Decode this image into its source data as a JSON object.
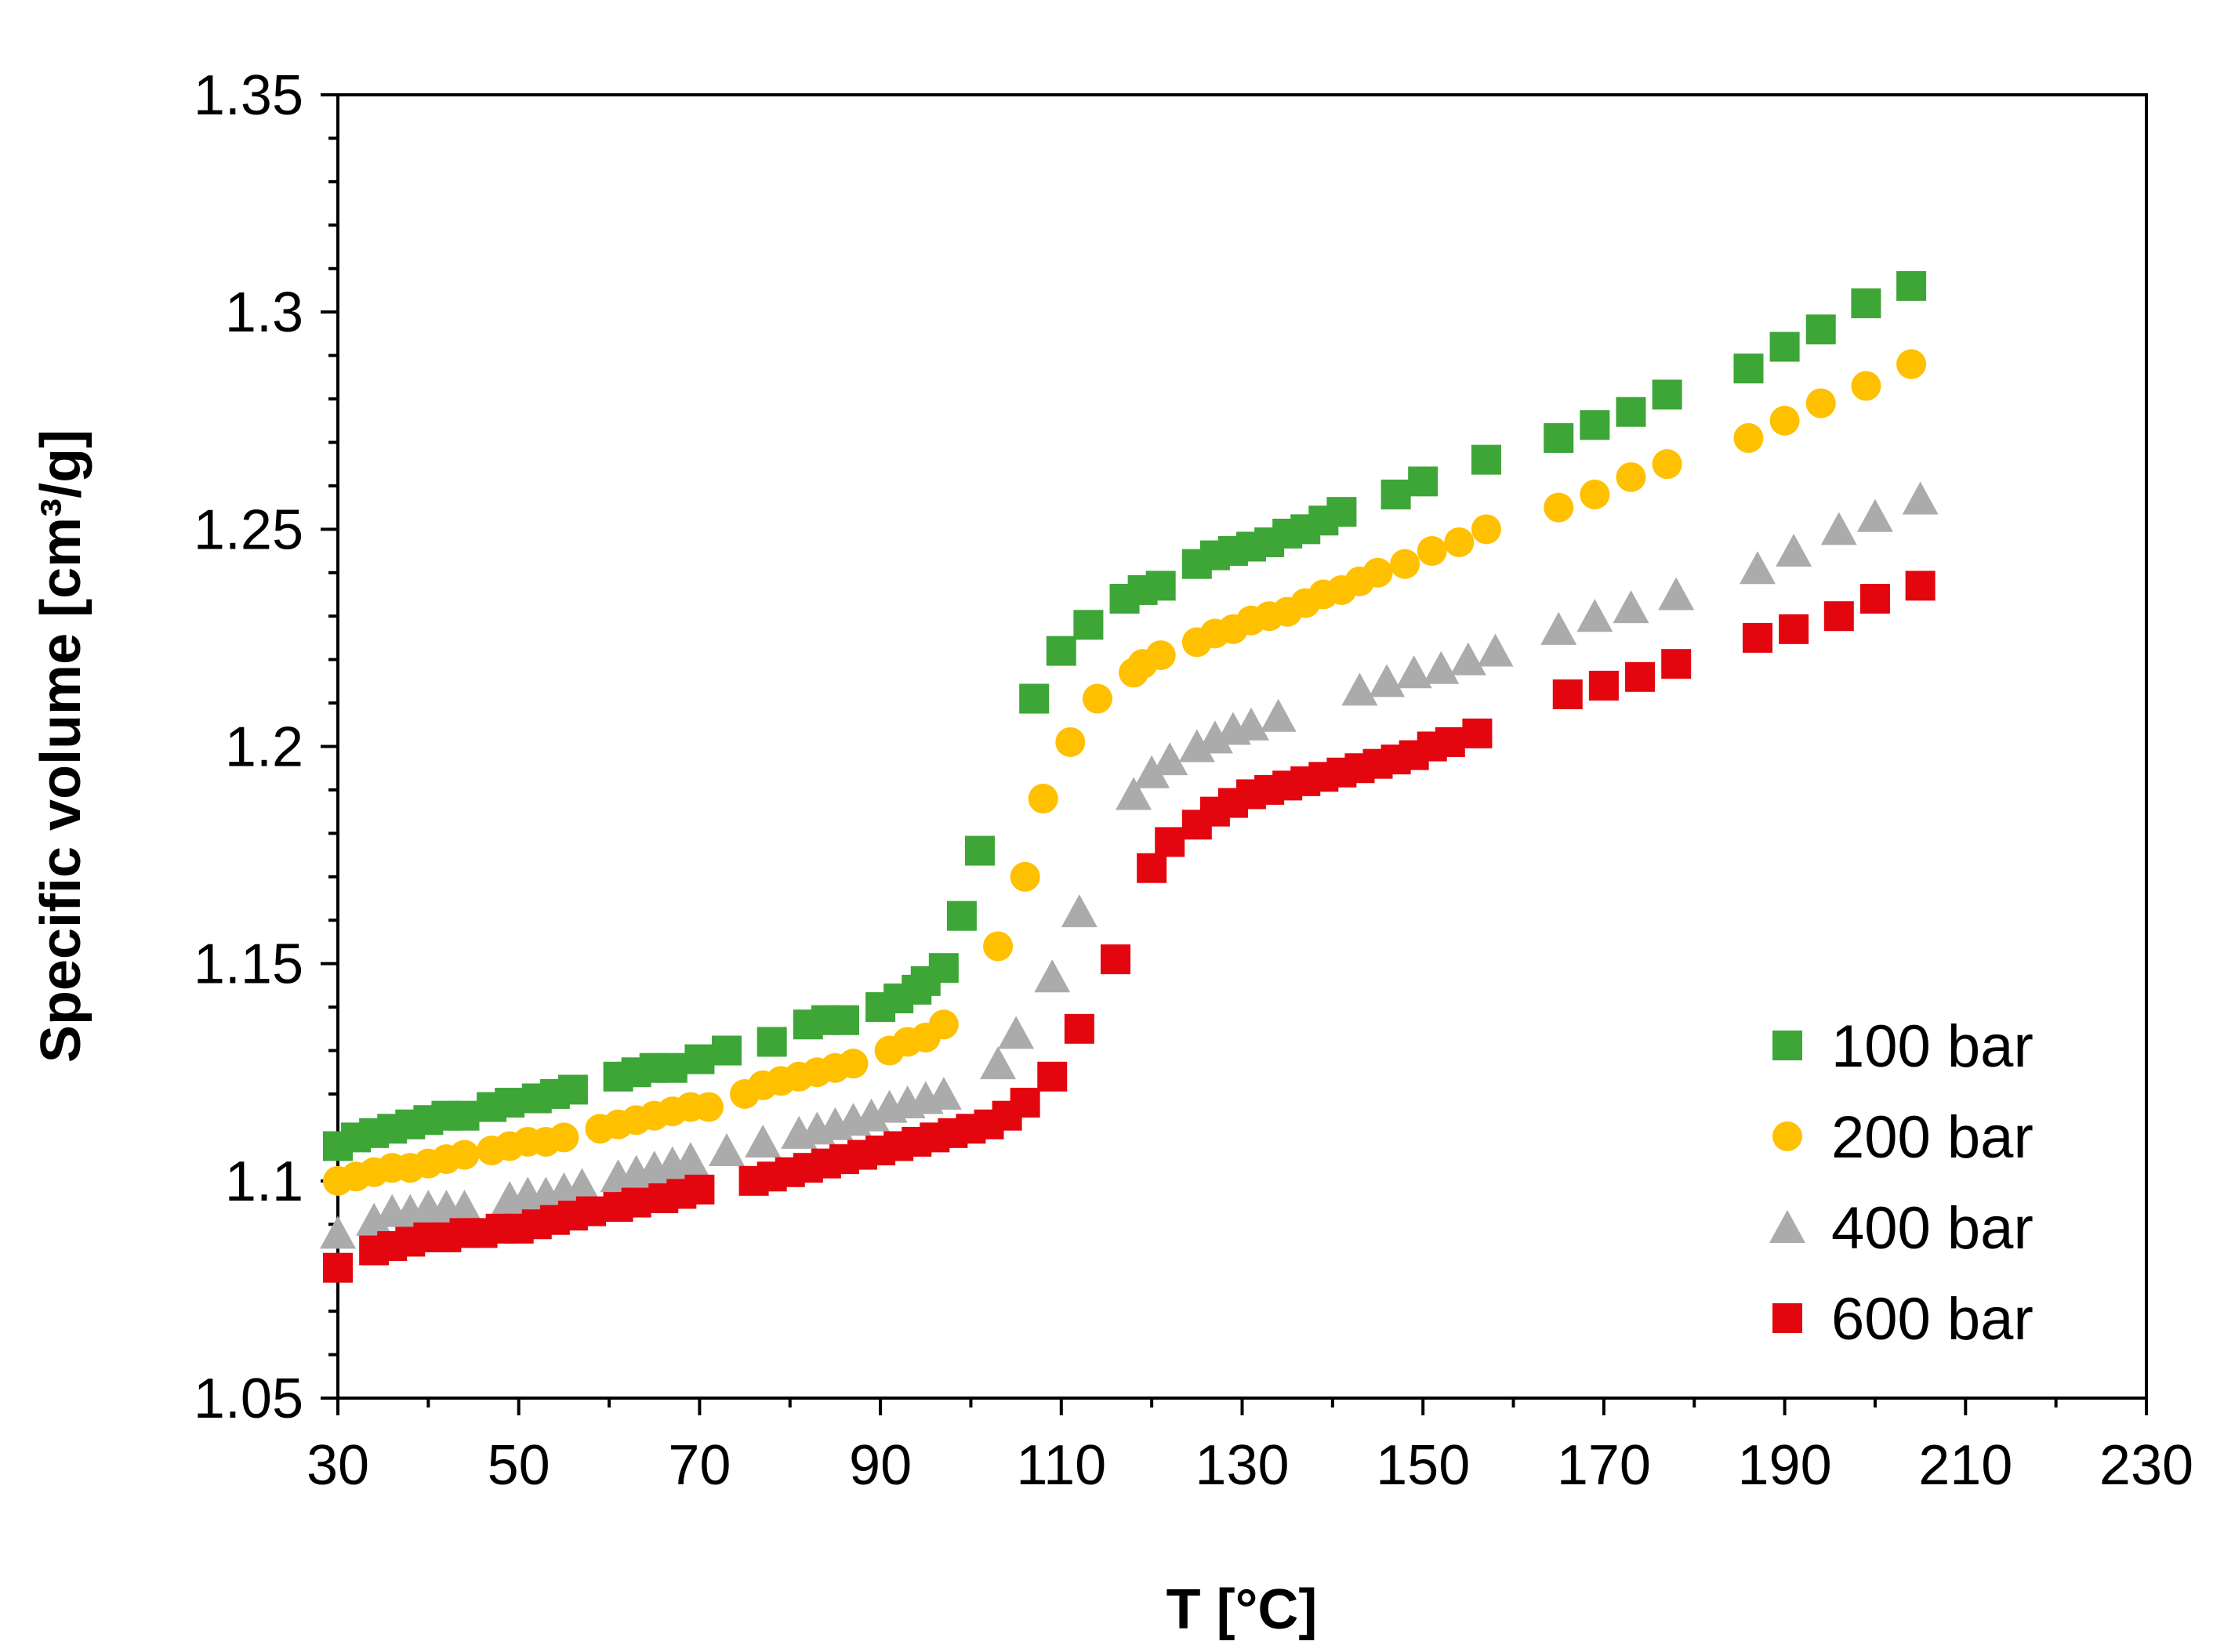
{
  "chart_data": {
    "type": "scatter",
    "title": "",
    "xlabel": "T [°C]",
    "ylabel": "Specific volume [cm³/g]",
    "xlim": [
      30,
      230
    ],
    "ylim": [
      1.05,
      1.35
    ],
    "xticks": [
      30,
      50,
      70,
      90,
      110,
      130,
      150,
      170,
      190,
      210,
      230
    ],
    "yticks": [
      1.05,
      1.1,
      1.15,
      1.2,
      1.25,
      1.3,
      1.35
    ],
    "ytick_labels": [
      "1.05",
      "1.1",
      "1.15",
      "1.2",
      "1.25",
      "1.3",
      "1.35"
    ],
    "grid": false,
    "legend_position": "bottom-right",
    "series": [
      {
        "name": "100 bar",
        "marker": "square",
        "color": "#3DA637",
        "x": [
          30,
          32,
          34,
          36,
          38,
          40,
          42,
          44,
          47,
          49,
          52,
          54,
          56,
          61,
          63,
          65,
          67,
          70,
          73,
          78,
          82,
          84,
          86,
          90,
          92,
          94,
          95,
          97,
          99,
          101,
          107,
          110,
          113,
          117,
          119,
          121,
          125,
          127,
          129,
          131,
          133,
          135,
          137,
          139,
          141,
          147,
          150,
          157,
          165,
          169,
          173,
          177,
          186,
          190,
          194,
          199,
          204
        ],
        "y": [
          1.108,
          1.11,
          1.111,
          1.112,
          1.113,
          1.114,
          1.115,
          1.115,
          1.117,
          1.118,
          1.119,
          1.12,
          1.121,
          1.124,
          1.125,
          1.126,
          1.126,
          1.128,
          1.13,
          1.132,
          1.136,
          1.137,
          1.137,
          1.14,
          1.142,
          1.144,
          1.146,
          1.149,
          1.161,
          1.176,
          1.211,
          1.222,
          1.228,
          1.234,
          1.236,
          1.237,
          1.242,
          1.244,
          1.245,
          1.246,
          1.247,
          1.249,
          1.25,
          1.252,
          1.254,
          1.258,
          1.261,
          1.266,
          1.271,
          1.274,
          1.277,
          1.281,
          1.287,
          1.292,
          1.296,
          1.302,
          1.306
        ]
      },
      {
        "name": "200 bar",
        "marker": "circle",
        "color": "#FFC000",
        "x": [
          30,
          32,
          34,
          36,
          38,
          40,
          42,
          44,
          47,
          49,
          51,
          53,
          55,
          59,
          61,
          63,
          65,
          67,
          69,
          71,
          75,
          77,
          79,
          81,
          83,
          85,
          87,
          91,
          93,
          95,
          97,
          103,
          106,
          108,
          111,
          114,
          118,
          119,
          121,
          125,
          127,
          129,
          131,
          133,
          135,
          137,
          139,
          141,
          143,
          145,
          148,
          151,
          154,
          157,
          165,
          169,
          173,
          177,
          186,
          190,
          194,
          199,
          204
        ],
        "y": [
          1.1,
          1.101,
          1.102,
          1.103,
          1.103,
          1.104,
          1.105,
          1.106,
          1.107,
          1.108,
          1.109,
          1.109,
          1.11,
          1.112,
          1.113,
          1.114,
          1.115,
          1.116,
          1.117,
          1.117,
          1.12,
          1.122,
          1.123,
          1.124,
          1.125,
          1.126,
          1.127,
          1.13,
          1.132,
          1.133,
          1.136,
          1.154,
          1.17,
          1.188,
          1.201,
          1.211,
          1.217,
          1.219,
          1.221,
          1.224,
          1.226,
          1.227,
          1.229,
          1.23,
          1.231,
          1.233,
          1.235,
          1.236,
          1.238,
          1.24,
          1.242,
          1.245,
          1.247,
          1.25,
          1.255,
          1.258,
          1.262,
          1.265,
          1.271,
          1.275,
          1.279,
          1.283,
          1.288
        ]
      },
      {
        "name": "400 bar",
        "marker": "triangle",
        "color": "#ABABAB",
        "x": [
          30,
          34,
          36,
          38,
          40,
          42,
          44,
          49,
          51,
          53,
          55,
          57,
          61,
          63,
          65,
          67,
          69,
          73,
          77,
          81,
          83,
          85,
          87,
          89,
          91,
          93,
          95,
          97,
          103,
          105,
          109,
          112,
          118,
          120,
          122,
          125,
          127,
          129,
          131,
          134,
          143,
          146,
          149,
          152,
          155,
          158,
          165,
          169,
          173,
          178,
          187,
          191,
          196,
          200,
          205
        ],
        "y": [
          1.088,
          1.091,
          1.093,
          1.093,
          1.094,
          1.094,
          1.094,
          1.096,
          1.097,
          1.097,
          1.098,
          1.099,
          1.101,
          1.102,
          1.103,
          1.104,
          1.105,
          1.107,
          1.109,
          1.111,
          1.112,
          1.113,
          1.114,
          1.115,
          1.117,
          1.118,
          1.119,
          1.12,
          1.127,
          1.134,
          1.147,
          1.162,
          1.189,
          1.194,
          1.197,
          1.2,
          1.202,
          1.204,
          1.205,
          1.207,
          1.213,
          1.215,
          1.217,
          1.218,
          1.22,
          1.222,
          1.227,
          1.23,
          1.232,
          1.235,
          1.241,
          1.245,
          1.25,
          1.253,
          1.257
        ]
      },
      {
        "name": "600 bar",
        "marker": "square",
        "color": "#E3060E",
        "x": [
          30,
          34,
          36,
          38,
          40,
          42,
          44,
          46,
          48,
          50,
          52,
          54,
          56,
          58,
          61,
          63,
          66,
          68,
          70,
          76,
          78,
          80,
          82,
          84,
          86,
          88,
          90,
          92,
          94,
          96,
          98,
          100,
          102,
          104,
          106,
          109,
          112,
          116,
          120,
          122,
          125,
          127,
          129,
          131,
          133,
          135,
          137,
          139,
          141,
          143,
          145,
          147,
          149,
          151,
          153,
          156,
          166,
          170,
          174,
          178,
          187,
          191,
          196,
          200,
          205
        ],
        "y": [
          1.08,
          1.084,
          1.085,
          1.086,
          1.087,
          1.087,
          1.088,
          1.088,
          1.089,
          1.089,
          1.09,
          1.091,
          1.092,
          1.093,
          1.094,
          1.095,
          1.096,
          1.097,
          1.098,
          1.1,
          1.101,
          1.102,
          1.103,
          1.104,
          1.105,
          1.106,
          1.107,
          1.108,
          1.109,
          1.11,
          1.111,
          1.112,
          1.113,
          1.115,
          1.118,
          1.124,
          1.135,
          1.151,
          1.172,
          1.178,
          1.182,
          1.185,
          1.187,
          1.189,
          1.19,
          1.191,
          1.192,
          1.193,
          1.194,
          1.195,
          1.196,
          1.197,
          1.198,
          1.2,
          1.201,
          1.203,
          1.212,
          1.214,
          1.216,
          1.219,
          1.225,
          1.227,
          1.23,
          1.234,
          1.237
        ]
      }
    ]
  }
}
